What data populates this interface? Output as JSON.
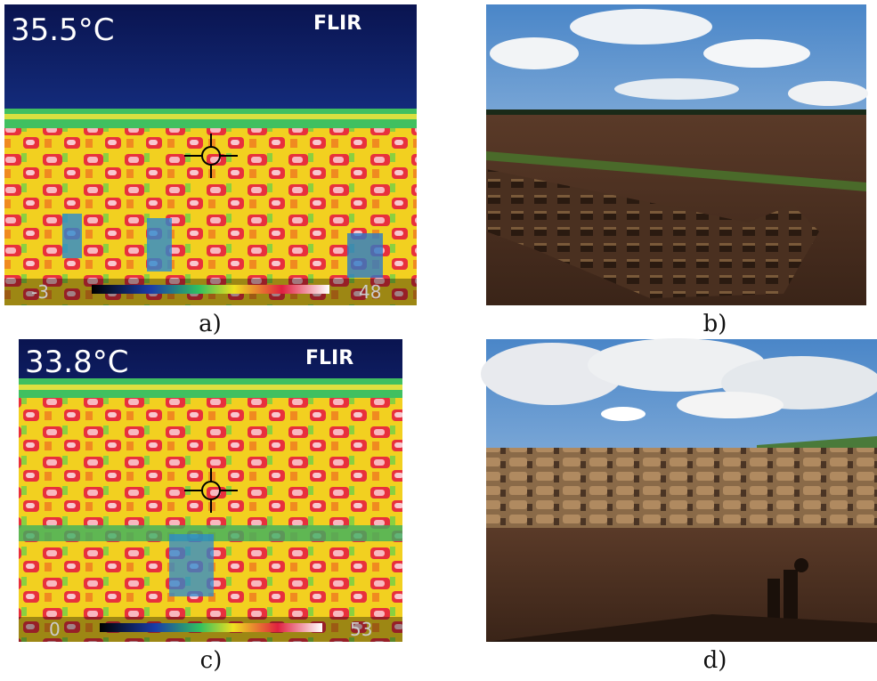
{
  "panels": [
    {
      "label": "a)",
      "temperature": "35.5°C",
      "brand": "FLIR",
      "scale_min": "-3",
      "scale_max": "48"
    },
    {
      "label": "b)"
    },
    {
      "label": "c)",
      "temperature": "33.8°C",
      "brand": "FLIR",
      "scale_min": "0",
      "scale_max": "53"
    },
    {
      "label": "d)"
    }
  ]
}
